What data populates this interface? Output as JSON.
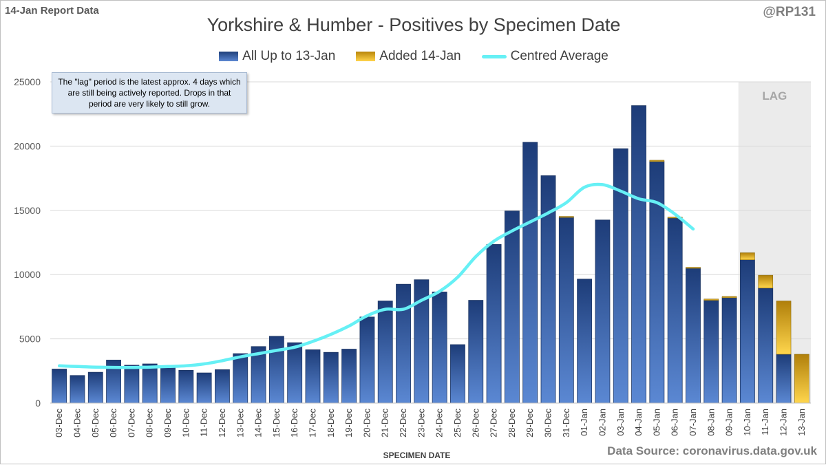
{
  "report_label": "14-Jan Report Data",
  "handle": "@RP131",
  "source": "Data Source: coronavirus.data.gov.uk",
  "note": "The \"lag\" period is the latest approx. 4 days which are still being actively reported. Drops in that period are very likely to still grow.",
  "lag_label": "LAG",
  "colors": {
    "base": "#2e5597",
    "added": "#e6b422",
    "average": "#66f0f5",
    "lag_bg": "#ebebeb"
  },
  "chart_data": {
    "type": "bar",
    "title": "Yorkshire & Humber - Positives by Specimen Date",
    "xlabel": "SPECIMEN DATE",
    "ylabel": "",
    "ylim": [
      0,
      25000
    ],
    "yticks": [
      0,
      5000,
      10000,
      15000,
      20000,
      25000
    ],
    "stacked": true,
    "categories": [
      "03-Dec",
      "04-Dec",
      "05-Dec",
      "06-Dec",
      "07-Dec",
      "08-Dec",
      "09-Dec",
      "10-Dec",
      "11-Dec",
      "12-Dec",
      "13-Dec",
      "14-Dec",
      "15-Dec",
      "16-Dec",
      "17-Dec",
      "18-Dec",
      "19-Dec",
      "20-Dec",
      "21-Dec",
      "22-Dec",
      "23-Dec",
      "24-Dec",
      "25-Dec",
      "26-Dec",
      "27-Dec",
      "28-Dec",
      "29-Dec",
      "30-Dec",
      "31-Dec",
      "01-Jan",
      "02-Jan",
      "03-Jan",
      "04-Jan",
      "05-Jan",
      "06-Jan",
      "07-Jan",
      "08-Jan",
      "09-Jan",
      "10-Jan",
      "11-Jan",
      "12-Jan",
      "13-Jan"
    ],
    "series": [
      {
        "name": "All Up to 13-Jan",
        "values": [
          2650,
          2150,
          2400,
          3350,
          2950,
          3050,
          2800,
          2550,
          2350,
          2600,
          3850,
          4400,
          5200,
          4700,
          4150,
          3950,
          4200,
          6700,
          7950,
          9250,
          9600,
          8650,
          4550,
          8000,
          12350,
          14950,
          20300,
          17700,
          14450,
          9650,
          14250,
          19800,
          23150,
          18800,
          14400,
          10500,
          8000,
          8200,
          11150,
          8950,
          3800,
          0
        ]
      },
      {
        "name": "Added 14-Jan",
        "values": [
          0,
          0,
          0,
          0,
          0,
          0,
          0,
          0,
          0,
          0,
          0,
          0,
          0,
          0,
          0,
          0,
          0,
          0,
          0,
          0,
          0,
          0,
          0,
          0,
          0,
          0,
          0,
          0,
          80,
          0,
          0,
          0,
          0,
          100,
          80,
          70,
          100,
          100,
          550,
          1000,
          4150,
          3800
        ]
      }
    ],
    "average": {
      "name": "Centred Average",
      "values": [
        2900,
        2850,
        2800,
        2780,
        2770,
        2800,
        2850,
        2900,
        3050,
        3300,
        3600,
        3850,
        4100,
        4350,
        4800,
        5350,
        6000,
        6800,
        7300,
        7300,
        8000,
        8700,
        9800,
        11400,
        12600,
        13400,
        14100,
        14800,
        15600,
        16800,
        17000,
        16500,
        15900,
        15600,
        14700,
        13550,
        null,
        null,
        null,
        null,
        null,
        null
      ]
    },
    "lag_categories": [
      "10-Jan",
      "11-Jan",
      "12-Jan",
      "13-Jan"
    ],
    "legend": [
      "All Up to 13-Jan",
      "Added 14-Jan",
      "Centred Average"
    ],
    "legend_position": "top"
  }
}
